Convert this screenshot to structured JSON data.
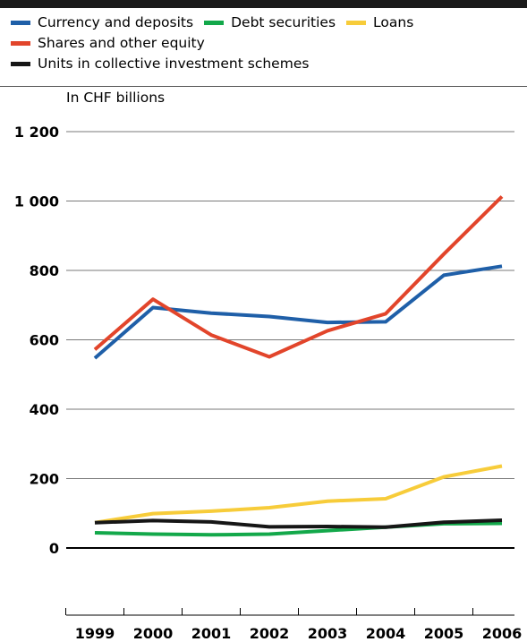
{
  "chart_data": {
    "type": "line",
    "unit_label": "In CHF billions",
    "x": [
      "1999",
      "2000",
      "2001",
      "2002",
      "2003",
      "2004",
      "2005",
      "2006"
    ],
    "y_ticks": [
      0,
      200,
      400,
      600,
      800,
      1000,
      1200
    ],
    "y_tick_labels": [
      "0",
      "200",
      "400",
      "600",
      "800",
      "1 000",
      "1 200"
    ],
    "ylim": [
      -200,
      1200
    ],
    "grid": true,
    "legend_placement": "top",
    "series": [
      {
        "name": "Currency and deposits",
        "color": "#1f5fa8",
        "values": [
          547,
          693,
          677,
          667,
          650,
          652,
          786,
          812
        ]
      },
      {
        "name": "Debt securities",
        "color": "#13a84a",
        "values": [
          44,
          40,
          38,
          40,
          50,
          60,
          70,
          71
        ]
      },
      {
        "name": "Loans",
        "color": "#f7cc3a",
        "values": [
          73,
          99,
          106,
          116,
          135,
          142,
          205,
          236
        ]
      },
      {
        "name": "Shares and other equity",
        "color": "#e2452b",
        "values": [
          572,
          717,
          614,
          551,
          626,
          675,
          847,
          1013
        ]
      },
      {
        "name": "Units in collective investment schemes",
        "color": "#161616",
        "values": [
          73,
          79,
          75,
          61,
          62,
          60,
          74,
          80
        ]
      }
    ]
  }
}
